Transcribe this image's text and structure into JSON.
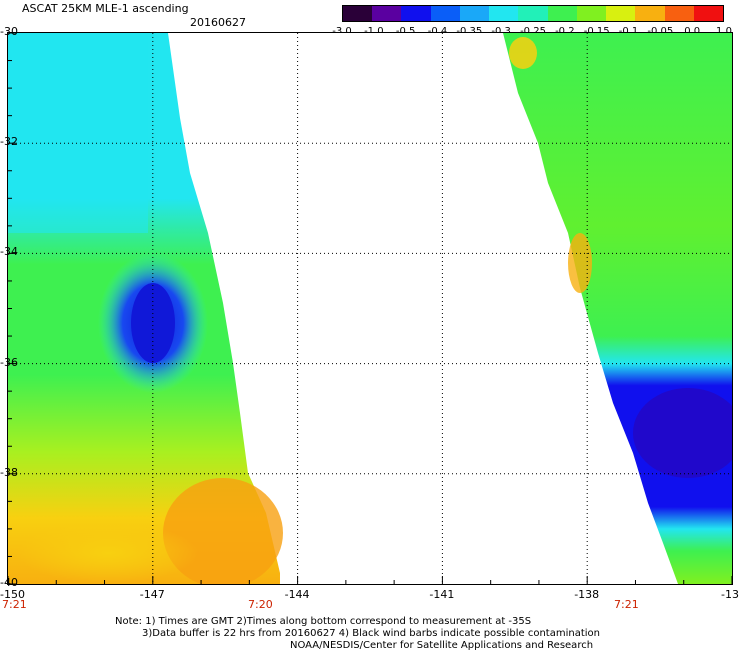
{
  "header": {
    "title": "ASCAT 25KM MLE-1 ascending",
    "date": "20160627"
  },
  "colorbar": {
    "labels": [
      "-3.0",
      "-1.0",
      "-0.5",
      "-0.4",
      "-0.35",
      "-0.3",
      "-0.25",
      "-0.2",
      "-0.15",
      "-0.1",
      "-0.05",
      "0.0",
      "1.0"
    ],
    "colors": [
      "#2a0038",
      "#5a00a0",
      "#1010ee",
      "#0a5ef8",
      "#1aa8f8",
      "#22e6f0",
      "#22f0b8",
      "#3ef050",
      "#80f020",
      "#d8f010",
      "#f8b010",
      "#f86010",
      "#f01010"
    ]
  },
  "map": {
    "lat_labels": [
      "-30",
      "-32",
      "-34",
      "-36",
      "-38",
      "-40"
    ],
    "lon_labels": [
      "-150",
      "-147",
      "-144",
      "-141",
      "-138",
      "-13"
    ],
    "time_labels": {
      "left_start": "7:21",
      "left_end": "7:20",
      "right_start": "7:21"
    }
  },
  "notes": {
    "line1": "Note: 1) Times are GMT 2)Times along bottom correspond to measurement at -35S",
    "line2": "3)Data buffer is 22 hrs from 20160627 4) Black wind barbs indicate possible contamination",
    "line3": "NOAA/NESDIS/Center for Satellite Applications and Research"
  }
}
